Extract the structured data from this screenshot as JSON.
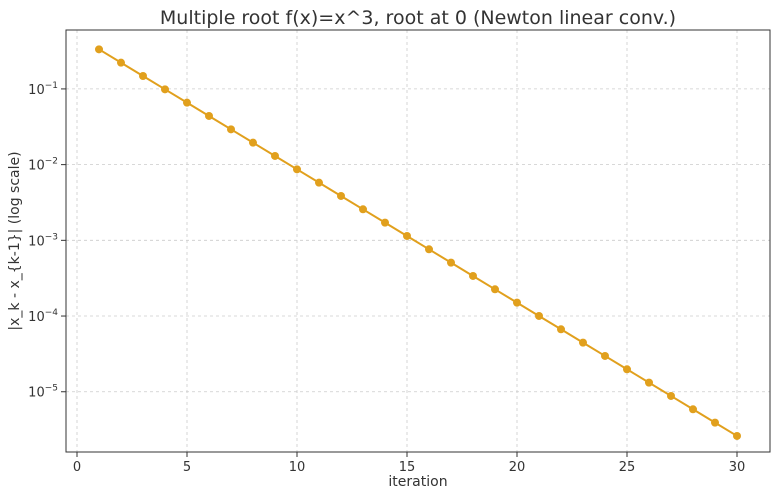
{
  "chart_data": {
    "type": "line",
    "title": "Multiple root f(x)=x^3, root at 0 (Newton linear conv.)",
    "xlabel": "iteration",
    "ylabel": "|x_k - x_{k-1}| (log scale)",
    "yscale": "log",
    "xlim": [
      -0.5,
      31.5
    ],
    "ylim": [
      1.6e-06,
      0.6
    ],
    "grid": true,
    "color": "#e1a01d",
    "x_ticks": [
      {
        "value": 0,
        "label": "0"
      },
      {
        "value": 5,
        "label": "5"
      },
      {
        "value": 10,
        "label": "10"
      },
      {
        "value": 15,
        "label": "15"
      },
      {
        "value": 20,
        "label": "20"
      },
      {
        "value": 25,
        "label": "25"
      },
      {
        "value": 30,
        "label": "30"
      }
    ],
    "y_ticks": [
      {
        "value": 0.1,
        "base": "10",
        "exp": "−1"
      },
      {
        "value": 0.01,
        "base": "10",
        "exp": "−2"
      },
      {
        "value": 0.001,
        "base": "10",
        "exp": "−3"
      },
      {
        "value": 0.0001,
        "base": "10",
        "exp": "−4"
      },
      {
        "value": 1e-05,
        "base": "10",
        "exp": "−5"
      }
    ],
    "series": [
      {
        "x": [
          1,
          2,
          3,
          4,
          5,
          6,
          7,
          8,
          9,
          10,
          11,
          12,
          13,
          14,
          15,
          16,
          17,
          18,
          19,
          20,
          21,
          22,
          23,
          24,
          25,
          26,
          27,
          28,
          29,
          30
        ],
        "y": [
          0.3333,
          0.2222,
          0.1481,
          0.09877,
          0.06584,
          0.0439,
          0.02926,
          0.01951,
          0.01301,
          0.00867,
          0.00578,
          0.003853,
          0.002569,
          0.001713,
          0.001142,
          0.0007611,
          0.0005074,
          0.0003383,
          0.0002255,
          0.0001503,
          0.0001002,
          6.682e-05,
          4.455e-05,
          2.97e-05,
          1.98e-05,
          1.32e-05,
          8.8e-06,
          5.867e-06,
          3.911e-06,
          2.607e-06
        ]
      }
    ]
  }
}
